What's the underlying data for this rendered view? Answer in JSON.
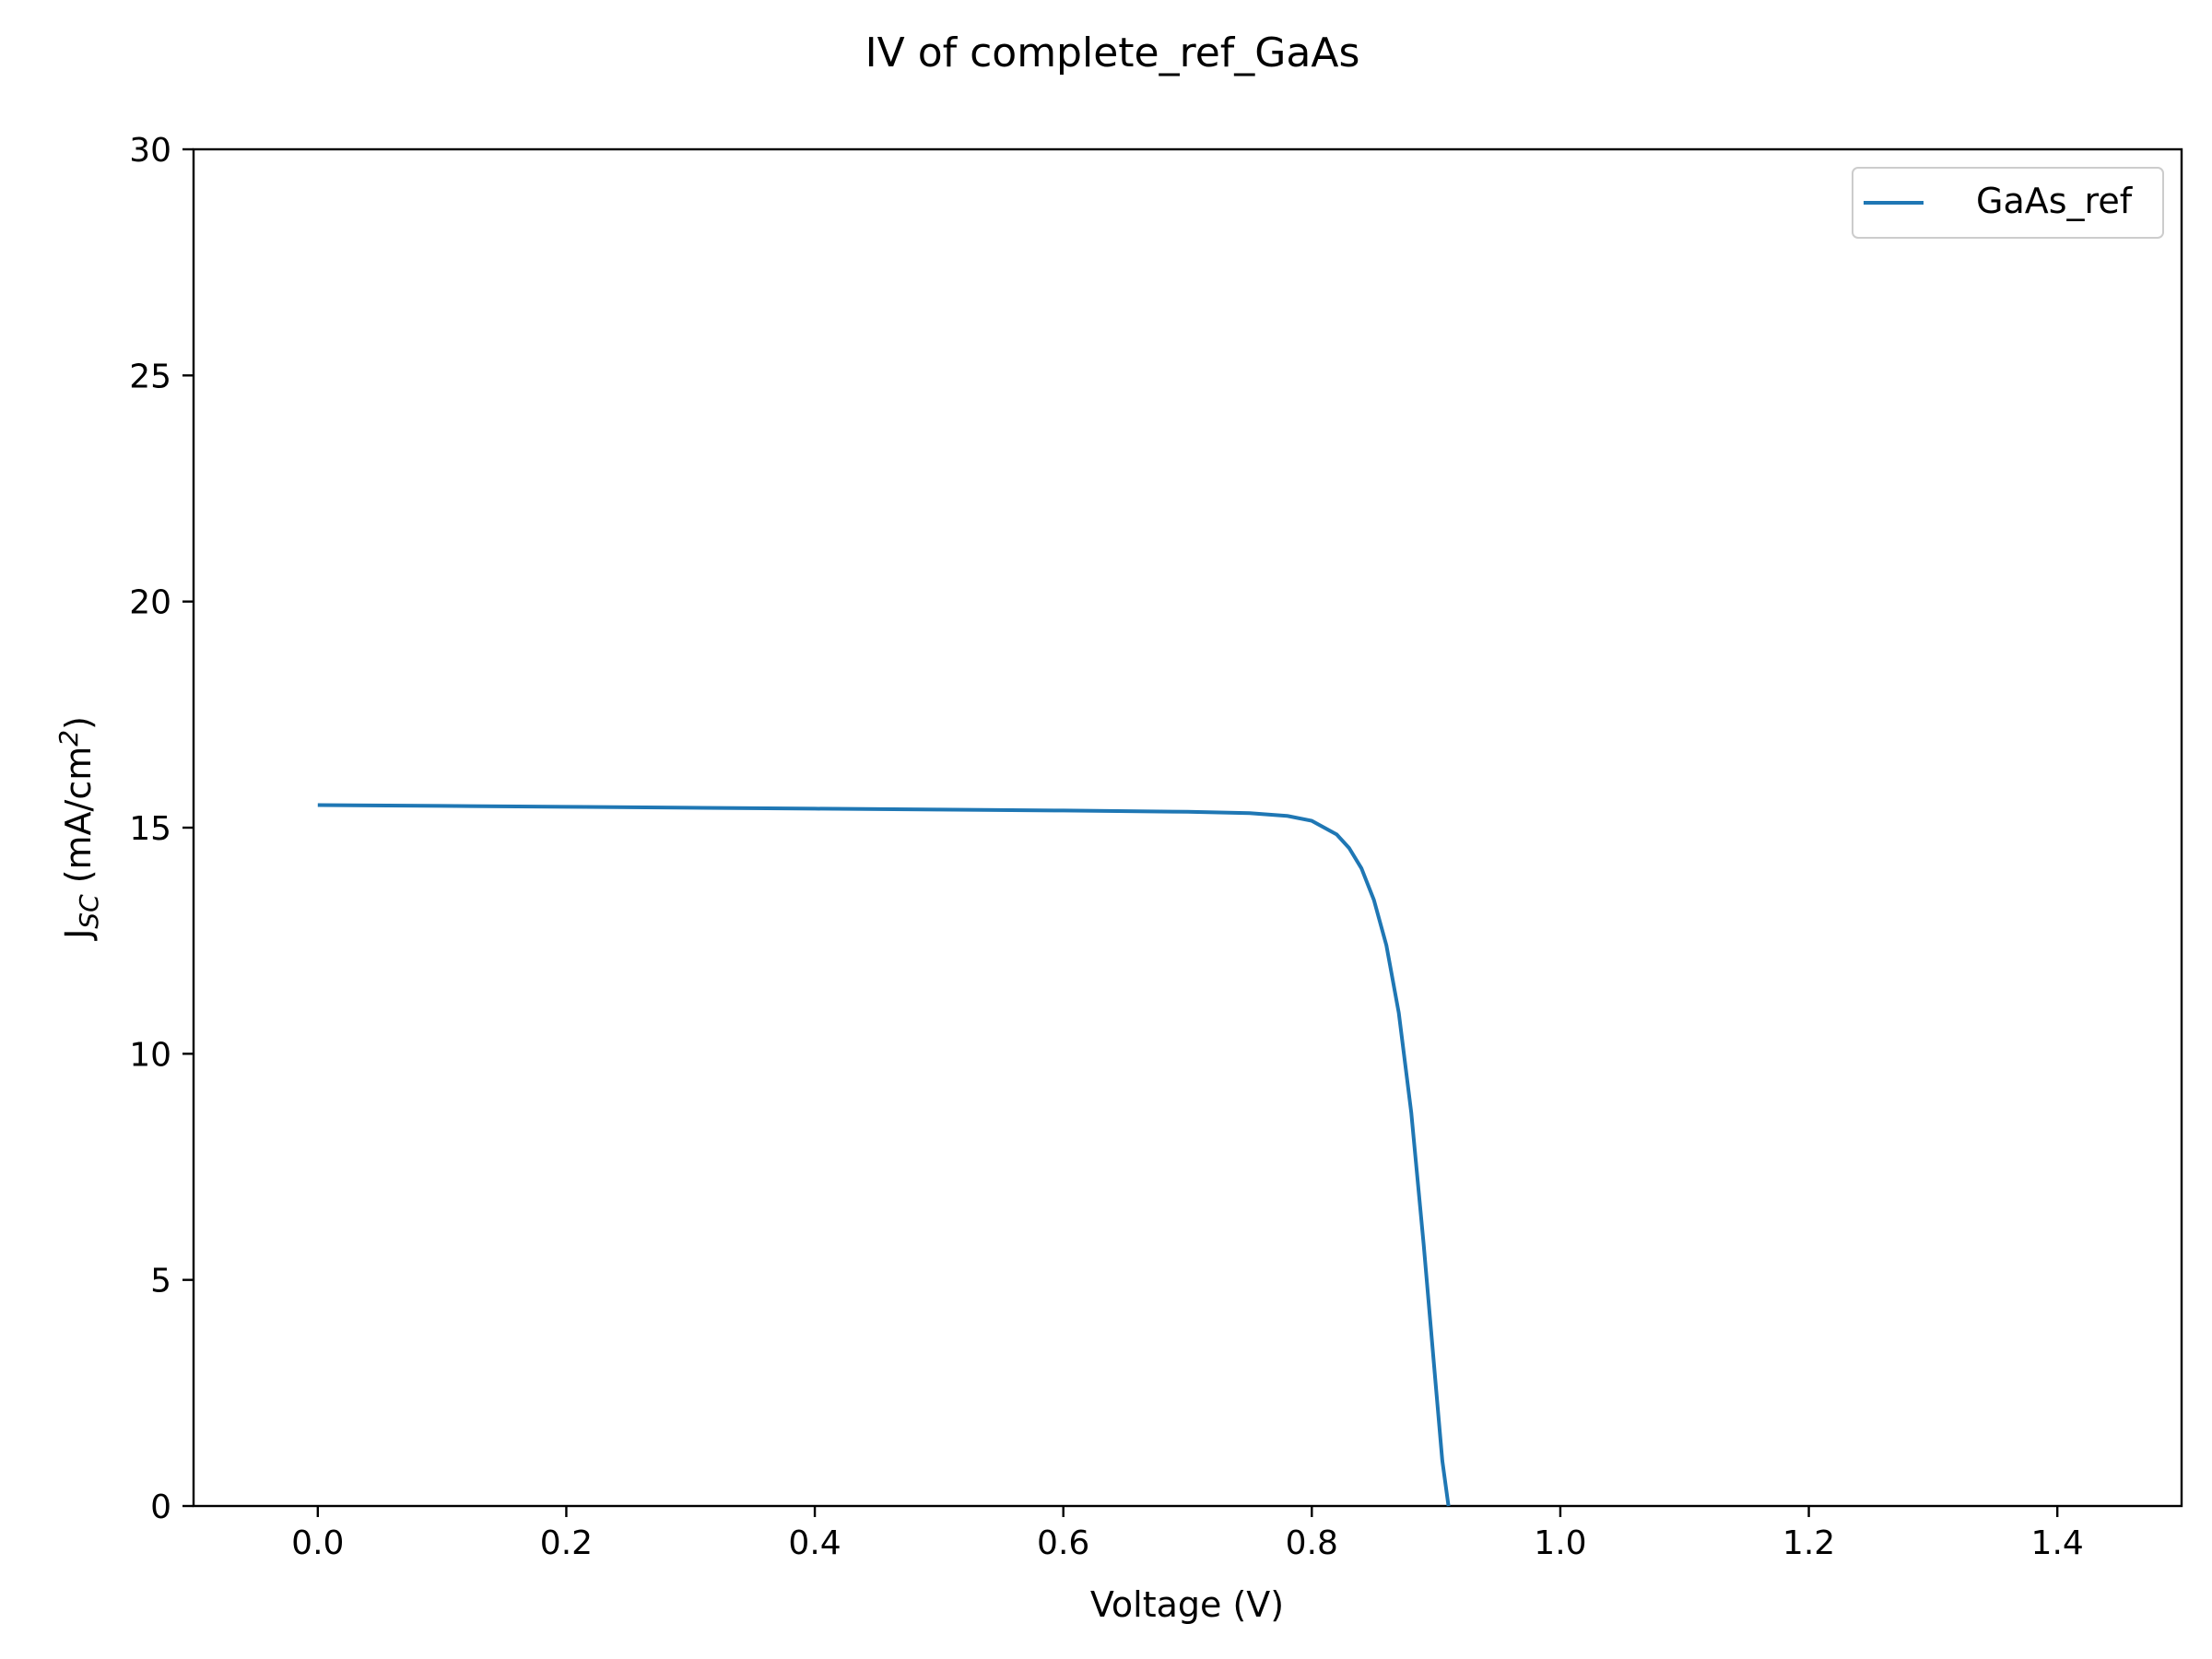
{
  "chart_data": {
    "type": "line",
    "title": "IV of complete_ref_GaAs",
    "xlabel": "Voltage (V)",
    "ylabel": {
      "main": "J",
      "sub": "SC",
      "rest": " (mA/cm",
      "sup": "2",
      "end": ")"
    },
    "xlim": [
      -0.1,
      1.5
    ],
    "ylim": [
      0,
      30
    ],
    "x_ticks": [
      0.0,
      0.2,
      0.4,
      0.6,
      0.8,
      1.0,
      1.2,
      1.4
    ],
    "x_tick_labels": [
      "0.0",
      "0.2",
      "0.4",
      "0.6",
      "0.8",
      "1.0",
      "1.2",
      "1.4"
    ],
    "y_ticks": [
      0,
      5,
      10,
      15,
      20,
      25,
      30
    ],
    "y_tick_labels": [
      "0",
      "5",
      "10",
      "15",
      "20",
      "25",
      "30"
    ],
    "grid": false,
    "legend_placement": "top-right",
    "series": [
      {
        "name": "GaAs_ref",
        "color": "#1f77b4",
        "x": [
          0.0,
          0.1,
          0.2,
          0.3,
          0.4,
          0.5,
          0.6,
          0.7,
          0.75,
          0.78,
          0.8,
          0.82,
          0.83,
          0.84,
          0.85,
          0.86,
          0.87,
          0.88,
          0.89,
          0.9,
          0.905,
          0.91
        ],
        "y": [
          15.5,
          15.48,
          15.46,
          15.44,
          15.42,
          15.4,
          15.38,
          15.35,
          15.32,
          15.26,
          15.15,
          14.85,
          14.55,
          14.1,
          13.4,
          12.4,
          10.9,
          8.7,
          5.8,
          2.6,
          1.0,
          0.0
        ]
      }
    ]
  }
}
